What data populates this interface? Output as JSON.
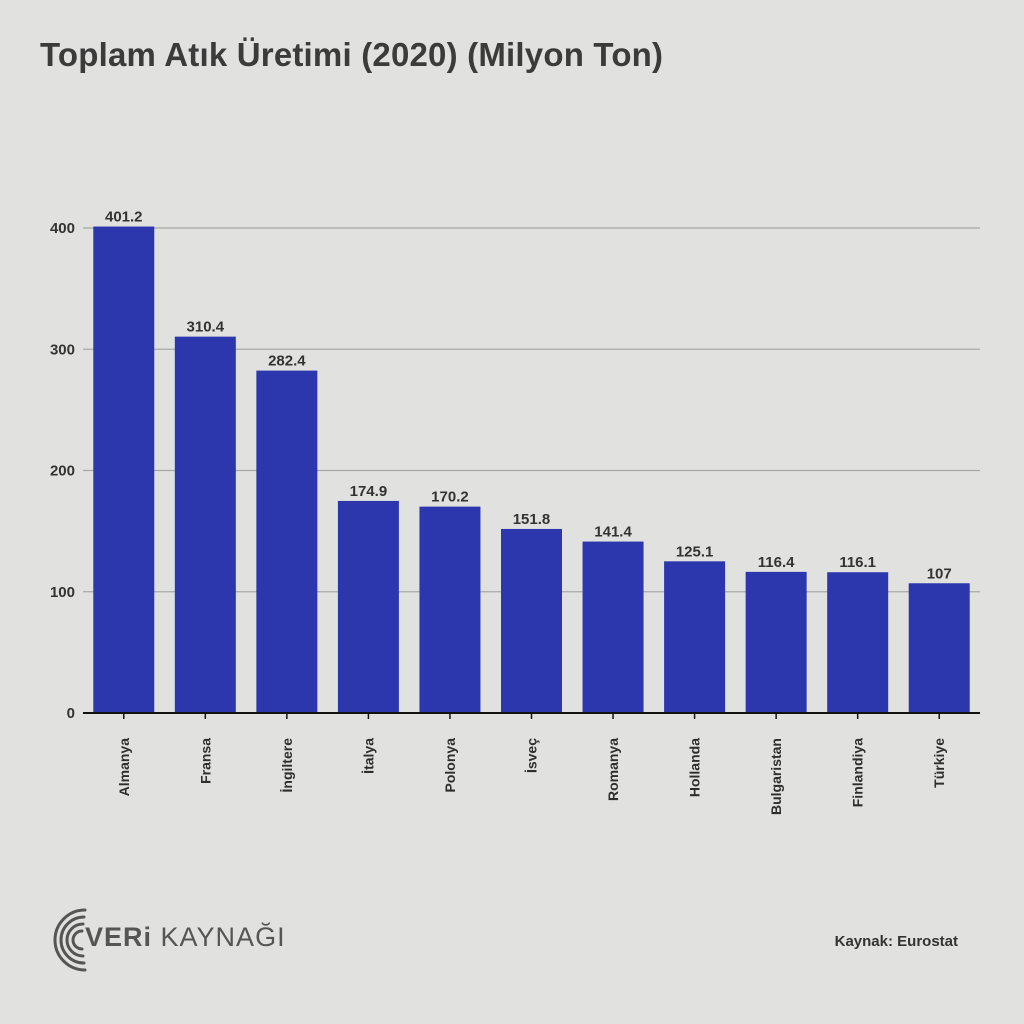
{
  "title": "Toplam Atık Üretimi (2020) (Milyon Ton)",
  "source": "Kaynak: Eurostat",
  "logo": {
    "brand_bold": "VERi",
    "brand_rest": " KAYNAĞI"
  },
  "colors": {
    "bar": "#2d37ad",
    "background": "#e1e2e0",
    "grid": "#a7a8a6",
    "axis": "#111111"
  },
  "chart_data": {
    "type": "bar",
    "title": "Toplam Atık Üretimi (2020) (Milyon Ton)",
    "xlabel": "",
    "ylabel": "",
    "ylim": [
      0,
      400
    ],
    "yticks": [
      0,
      100,
      200,
      300,
      400
    ],
    "grid": true,
    "categories": [
      "Almanya",
      "Fransa",
      "İngiltere",
      "İtalya",
      "Polonya",
      "İsveç",
      "Romanya",
      "Hollanda",
      "Bulgaristan",
      "Finlandiya",
      "Türkiye"
    ],
    "values": [
      401.2,
      310.4,
      282.4,
      174.9,
      170.2,
      151.8,
      141.4,
      125.1,
      116.4,
      116.1,
      107
    ],
    "value_labels": [
      "401.2",
      "310.4",
      "282.4",
      "174.9",
      "170.2",
      "151.8",
      "141.4",
      "125.1",
      "116.4",
      "116.1",
      "107"
    ]
  }
}
